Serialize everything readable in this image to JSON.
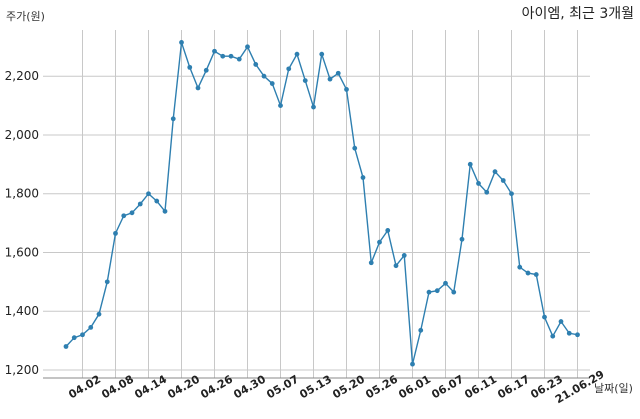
{
  "chart_data": {
    "type": "line",
    "title": "아이엠, 최근 3개월",
    "ylabel": "주가(원)",
    "xlabel": "날짜(일)",
    "ylim": [
      1200,
      2330
    ],
    "yticks": [
      1200,
      1400,
      1600,
      1800,
      2000,
      2200
    ],
    "ytick_labels": [
      "1,200",
      "1,400",
      "1,600",
      "1,800",
      "2,000",
      "2,200"
    ],
    "xticks": [
      "04.02",
      "04.08",
      "04.14",
      "04.20",
      "04.26",
      "04.30",
      "05.07",
      "05.13",
      "05.20",
      "05.26",
      "06.01",
      "06.07",
      "06.11",
      "06.17",
      "06.23",
      "21.06.29"
    ],
    "xtick_indices": [
      2,
      6,
      10,
      14,
      18,
      22,
      26,
      30,
      34,
      38,
      42,
      46,
      50,
      54,
      58,
      62
    ],
    "grid": true,
    "series": [
      {
        "color": "#2e7fb0",
        "values": [
          1280,
          1310,
          1320,
          1345,
          1390,
          1500,
          1665,
          1725,
          1735,
          1765,
          1800,
          1775,
          1740,
          2055,
          2315,
          2230,
          2160,
          2220,
          2285,
          2268,
          2268,
          2258,
          2300,
          2240,
          2200,
          2175,
          2100,
          2225,
          2275,
          2185,
          2095,
          2275,
          2190,
          2210,
          2155,
          1955,
          1855,
          1565,
          1635,
          1675,
          1555,
          1590,
          1220,
          1335,
          1465,
          1470,
          1495,
          1465,
          1645,
          1900,
          1835,
          1805,
          1875,
          1845,
          1800,
          1550,
          1530,
          1525,
          1380,
          1315,
          1365,
          1325,
          1320
        ]
      }
    ]
  }
}
